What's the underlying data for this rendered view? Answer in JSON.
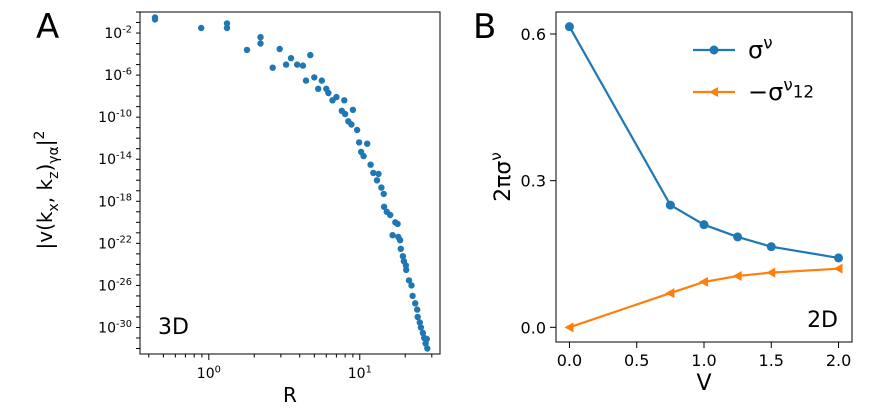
{
  "chart_data": [
    {
      "panel_label": "A",
      "type": "scatter",
      "title": "",
      "xlabel": "R",
      "ylabel": "|v(k_x, k_z)_{γα}|^2",
      "xscale": "log",
      "yscale": "log",
      "xlim": [
        0.35,
        34
      ],
      "ylim": [
        3e-33,
        1.0
      ],
      "x_ticks": [
        {
          "value": 1,
          "label": "10^0"
        },
        {
          "value": 10,
          "label": "10^1"
        }
      ],
      "y_ticks": [
        {
          "value": 0.01,
          "label": "10^-2"
        },
        {
          "value": 1e-06,
          "label": "10^-6"
        },
        {
          "value": 1e-10,
          "label": "10^-10"
        },
        {
          "value": 1e-14,
          "label": "10^-14"
        },
        {
          "value": 1e-18,
          "label": "10^-18"
        },
        {
          "value": 1e-22,
          "label": "10^-22"
        },
        {
          "value": 1e-26,
          "label": "10^-26"
        },
        {
          "value": 1e-30,
          "label": "10^-30"
        }
      ],
      "annotation": "3D",
      "grid": false,
      "color": "#1f77b4",
      "points": [
        [
          0.44,
          0.2
        ],
        [
          0.44,
          0.3
        ],
        [
          0.89,
          0.03
        ],
        [
          1.32,
          0.03
        ],
        [
          1.32,
          0.08
        ],
        [
          1.79,
          0.00025
        ],
        [
          2.2,
          0.001
        ],
        [
          2.2,
          0.004
        ],
        [
          2.65,
          5e-06
        ],
        [
          2.95,
          0.0003
        ],
        [
          3.25,
          1e-05
        ],
        [
          3.5,
          4e-05
        ],
        [
          3.85,
          1e-05
        ],
        [
          4.2,
          8e-06
        ],
        [
          4.4,
          3e-07
        ],
        [
          4.7,
          8e-05
        ],
        [
          5.0,
          6e-07
        ],
        [
          5.3,
          5e-08
        ],
        [
          5.6,
          3e-07
        ],
        [
          6.0,
          5e-08
        ],
        [
          6.2,
          2e-08
        ],
        [
          6.6,
          4e-09
        ],
        [
          7.0,
          8e-09
        ],
        [
          7.6,
          4e-10
        ],
        [
          7.9,
          4e-09
        ],
        [
          8.0,
          2e-10
        ],
        [
          8.4,
          4e-11
        ],
        [
          8.8,
          2e-11
        ],
        [
          9.0,
          5e-10
        ],
        [
          9.6,
          6e-12
        ],
        [
          9.9,
          4e-13
        ],
        [
          10.2,
          5e-14
        ],
        [
          10.6,
          2e-14
        ],
        [
          11.2,
          3e-13
        ],
        [
          11.8,
          3e-15
        ],
        [
          12.3,
          5e-16
        ],
        [
          13.0,
          1e-16
        ],
        [
          13.3,
          4e-16
        ],
        [
          13.9,
          2e-17
        ],
        [
          14.4,
          5e-18
        ],
        [
          14.5,
          3e-19
        ],
        [
          15.1,
          1e-19
        ],
        [
          15.9,
          5e-20
        ],
        [
          16.5,
          6e-22
        ],
        [
          17.2,
          1e-20
        ],
        [
          17.8,
          7e-21
        ],
        [
          18.0,
          4e-22
        ],
        [
          18.5,
          2e-22
        ],
        [
          18.7,
          3e-23
        ],
        [
          19.3,
          6e-24
        ],
        [
          19.6,
          2e-24
        ],
        [
          20.2,
          8e-25
        ],
        [
          20.3,
          3e-25
        ],
        [
          21.2,
          3e-26
        ],
        [
          22.0,
          1e-26
        ],
        [
          22.4,
          1e-27
        ],
        [
          23.3,
          2e-28
        ],
        [
          24.0,
          5e-29
        ],
        [
          24.2,
          1e-29
        ],
        [
          25.0,
          3e-30
        ],
        [
          25.4,
          1e-30
        ],
        [
          26.2,
          3e-31
        ],
        [
          26.7,
          1e-31
        ],
        [
          27.3,
          3e-32
        ],
        [
          27.8,
          8e-32
        ],
        [
          28.0,
          1e-32
        ]
      ]
    },
    {
      "panel_label": "B",
      "type": "line",
      "title": "",
      "xlabel": "V",
      "ylabel": "2πσ^ν",
      "xlim": [
        -0.1,
        2.1
      ],
      "ylim": [
        -0.03,
        0.645
      ],
      "x_ticks": [
        0.0,
        0.5,
        1.0,
        1.5,
        2.0
      ],
      "x_tick_labels": [
        "0.0",
        "0.5",
        "1.0",
        "1.5",
        "2.0"
      ],
      "y_ticks": [
        0.0,
        0.3,
        0.6
      ],
      "y_tick_labels": [
        "0.0",
        "0.3",
        "0.6"
      ],
      "annotation": "2D",
      "grid": false,
      "legend_position": "top-right",
      "x": [
        0.0,
        0.75,
        1.0,
        1.25,
        1.5,
        2.0
      ],
      "series": [
        {
          "name": "σ^ν",
          "color": "#1f77b4",
          "marker": "circle",
          "values": [
            0.615,
            0.25,
            0.21,
            0.185,
            0.165,
            0.142
          ]
        },
        {
          "name": "−σ^ν_12",
          "color": "#ff7f0e",
          "marker": "triangle-left",
          "values": [
            0.0,
            0.07,
            0.093,
            0.105,
            0.112,
            0.12
          ]
        }
      ]
    }
  ]
}
